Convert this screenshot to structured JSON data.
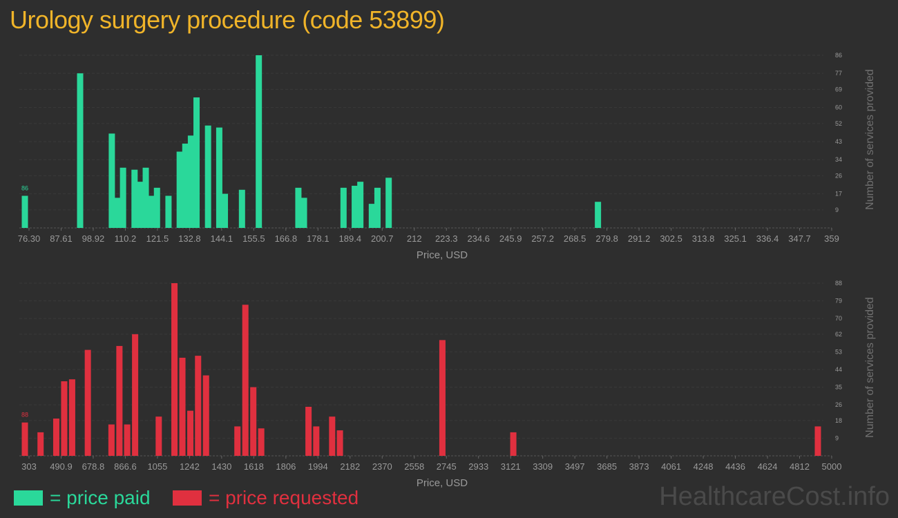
{
  "title": "Urology surgery procedure (code 53899)",
  "legend": {
    "paid": "= price paid",
    "requested": "= price requested"
  },
  "watermark": "HealthcareCost.info",
  "colors": {
    "paid": "#2ad89a",
    "requested": "#e0303f",
    "title": "#f0b429",
    "background": "#2e2e2e"
  },
  "chart_data": [
    {
      "type": "bar",
      "series_name": "price paid",
      "xlabel": "Price, USD",
      "ylabel": "Number of services provided",
      "x_tick_labels": [
        "76.30",
        "87.61",
        "98.92",
        "110.2",
        "121.5",
        "132.8",
        "144.1",
        "155.5",
        "166.8",
        "178.1",
        "189.4",
        "200.7",
        "212",
        "223.3",
        "234.6",
        "245.9",
        "257.2",
        "268.5",
        "279.8",
        "291.2",
        "302.5",
        "313.8",
        "325.1",
        "336.4",
        "347.7",
        "359"
      ],
      "xlim": [
        76.3,
        359
      ],
      "y_tick_labels": [
        9,
        17,
        26,
        34,
        43,
        52,
        60,
        69,
        77,
        86
      ],
      "ylim": [
        0,
        86
      ],
      "peak_label": "86",
      "grid": true,
      "bars": [
        {
          "x": 76.3,
          "y": 16
        },
        {
          "x": 96.0,
          "y": 77
        },
        {
          "x": 107.3,
          "y": 47
        },
        {
          "x": 109.3,
          "y": 15
        },
        {
          "x": 111.3,
          "y": 30
        },
        {
          "x": 115.4,
          "y": 29
        },
        {
          "x": 117.4,
          "y": 23
        },
        {
          "x": 119.4,
          "y": 30
        },
        {
          "x": 121.4,
          "y": 16
        },
        {
          "x": 123.4,
          "y": 20
        },
        {
          "x": 127.5,
          "y": 16
        },
        {
          "x": 131.5,
          "y": 38
        },
        {
          "x": 133.5,
          "y": 42
        },
        {
          "x": 135.5,
          "y": 46
        },
        {
          "x": 137.5,
          "y": 65
        },
        {
          "x": 141.6,
          "y": 51
        },
        {
          "x": 145.6,
          "y": 50
        },
        {
          "x": 147.6,
          "y": 17
        },
        {
          "x": 153.7,
          "y": 19
        },
        {
          "x": 159.7,
          "y": 86
        },
        {
          "x": 173.8,
          "y": 20
        },
        {
          "x": 175.8,
          "y": 15
        },
        {
          "x": 189.9,
          "y": 20
        },
        {
          "x": 193.9,
          "y": 21
        },
        {
          "x": 195.9,
          "y": 23
        },
        {
          "x": 200.0,
          "y": 12
        },
        {
          "x": 202.0,
          "y": 20
        },
        {
          "x": 206.0,
          "y": 25
        },
        {
          "x": 280.6,
          "y": 13
        }
      ]
    },
    {
      "type": "bar",
      "series_name": "price requested",
      "xlabel": "Price, USD",
      "ylabel": "Number of services provided",
      "x_tick_labels": [
        "303",
        "490.9",
        "678.8",
        "866.6",
        "1055",
        "1242",
        "1430",
        "1618",
        "1806",
        "1994",
        "2182",
        "2370",
        "2558",
        "2745",
        "2933",
        "3121",
        "3309",
        "3497",
        "3685",
        "3873",
        "4061",
        "4248",
        "4436",
        "4624",
        "4812",
        "5000"
      ],
      "xlim": [
        303,
        5000
      ],
      "y_tick_labels": [
        9,
        18,
        26,
        35,
        44,
        53,
        62,
        70,
        79,
        88
      ],
      "ylim": [
        0,
        88
      ],
      "peak_label": "88",
      "grid": true,
      "bars": [
        {
          "x": 303,
          "y": 17
        },
        {
          "x": 396,
          "y": 12
        },
        {
          "x": 489,
          "y": 19
        },
        {
          "x": 536,
          "y": 38
        },
        {
          "x": 583,
          "y": 39
        },
        {
          "x": 676,
          "y": 54
        },
        {
          "x": 816,
          "y": 16
        },
        {
          "x": 863,
          "y": 56
        },
        {
          "x": 909,
          "y": 16
        },
        {
          "x": 956,
          "y": 62
        },
        {
          "x": 1096,
          "y": 20
        },
        {
          "x": 1189,
          "y": 88
        },
        {
          "x": 1236,
          "y": 50
        },
        {
          "x": 1283,
          "y": 23
        },
        {
          "x": 1329,
          "y": 51
        },
        {
          "x": 1376,
          "y": 41
        },
        {
          "x": 1562,
          "y": 15
        },
        {
          "x": 1609,
          "y": 77
        },
        {
          "x": 1656,
          "y": 35
        },
        {
          "x": 1703,
          "y": 14
        },
        {
          "x": 1983,
          "y": 25
        },
        {
          "x": 2029,
          "y": 15
        },
        {
          "x": 2123,
          "y": 20
        },
        {
          "x": 2169,
          "y": 13
        },
        {
          "x": 2776,
          "y": 59
        },
        {
          "x": 3196,
          "y": 12
        },
        {
          "x": 5000,
          "y": 15
        }
      ]
    }
  ]
}
